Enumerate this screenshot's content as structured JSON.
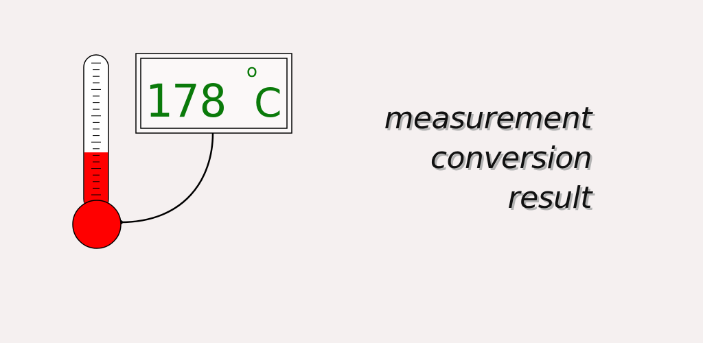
{
  "display": {
    "value": "178",
    "degree_symbol": "o",
    "unit": "C",
    "text_color": "#0a7a0a"
  },
  "thermometer": {
    "fill_level": 0.38,
    "mercury_color": "#ff0000",
    "tube_color": "#ffffff"
  },
  "tagline": {
    "line1": "measurement",
    "line2": "conversion",
    "line3": "result",
    "text_color": "#111111",
    "shadow_color": "#b3b3b3"
  }
}
